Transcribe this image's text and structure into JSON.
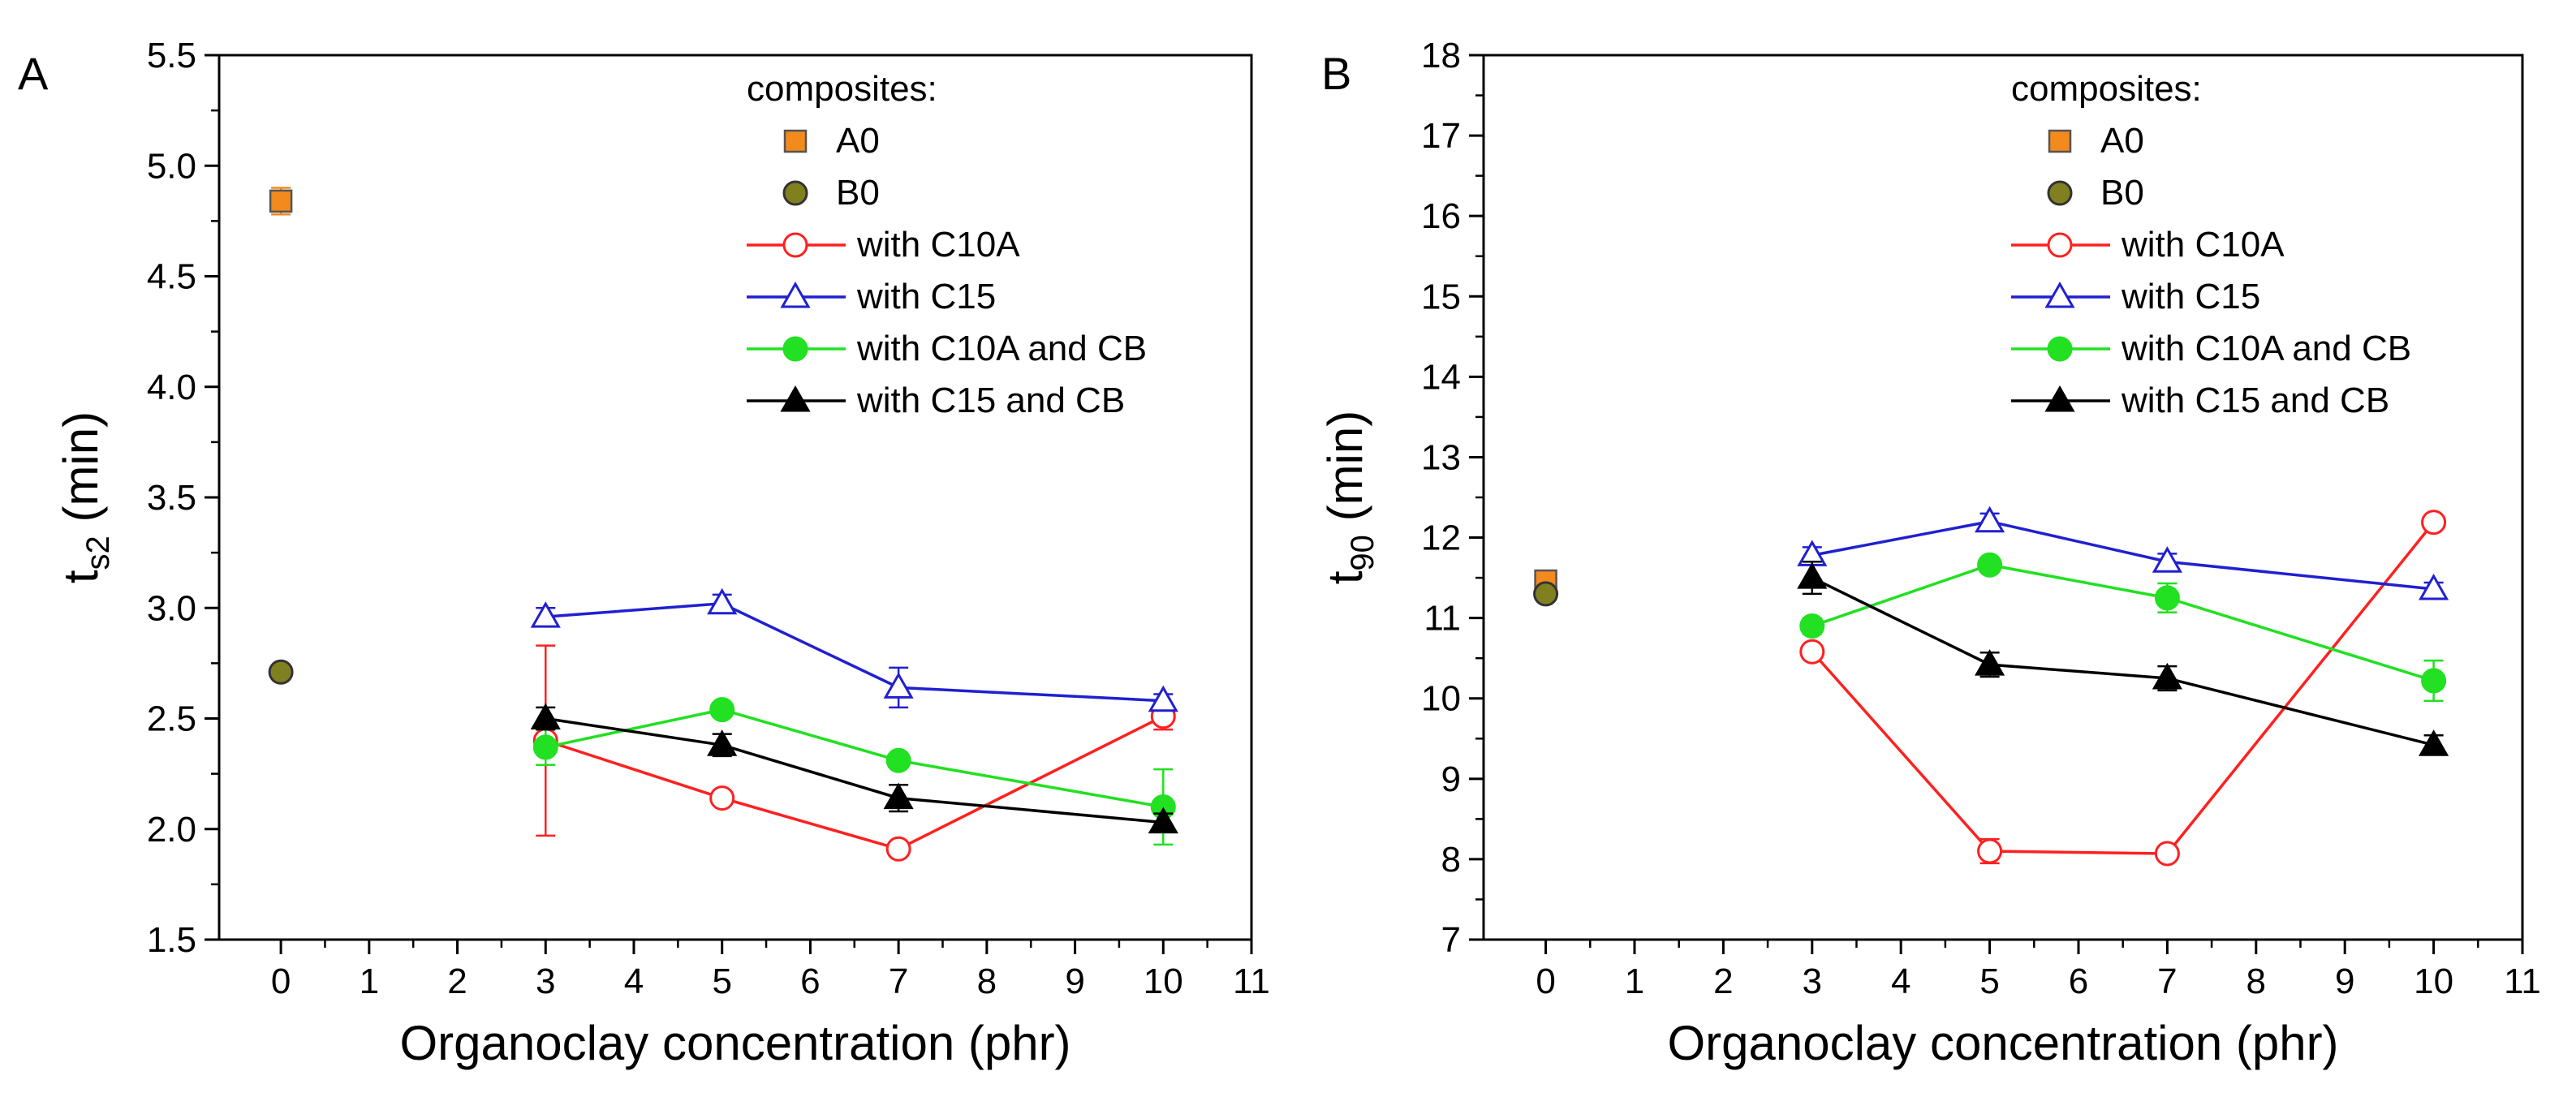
{
  "chart_data": [
    {
      "panel_label": "A",
      "type": "scatter",
      "xlabel": "Organoclay concentration (phr)",
      "ylabel_main": "t",
      "ylabel_sub": "s2",
      "ylabel_unit": " (min)",
      "xlim": [
        -0.7,
        11
      ],
      "ylim": [
        1.5,
        5.5
      ],
      "xticks": [
        0,
        1,
        2,
        3,
        4,
        5,
        6,
        7,
        8,
        9,
        10,
        11
      ],
      "yticks": [
        1.5,
        2.0,
        2.5,
        3.0,
        3.5,
        4.0,
        4.5,
        5.0,
        5.5
      ],
      "ytick_labels": [
        "1.5",
        "2.0",
        "2.5",
        "3.0",
        "3.5",
        "4.0",
        "4.5",
        "5.0",
        "5.5"
      ],
      "legend_title": "composites:",
      "series": [
        {
          "name": "A0",
          "key": "a0",
          "color": "#f28a1e",
          "marker": "square",
          "filled": true,
          "line": false,
          "x": [
            0
          ],
          "y": [
            4.84
          ],
          "err": [
            0.06
          ]
        },
        {
          "name": "B0",
          "key": "b0",
          "color": "#808020",
          "marker": "circle",
          "filled": true,
          "line": false,
          "x": [
            0
          ],
          "y": [
            2.71
          ],
          "err": [
            0.03
          ]
        },
        {
          "name": "with C10A",
          "key": "c10a",
          "color": "#ff2020",
          "marker": "circle",
          "filled": false,
          "line": true,
          "x": [
            3,
            5,
            7,
            10
          ],
          "y": [
            2.4,
            2.14,
            1.91,
            2.51
          ],
          "err": [
            0.43,
            0.03,
            0.03,
            0.06
          ]
        },
        {
          "name": "with C15",
          "key": "c15",
          "color": "#2020d0",
          "marker": "triangle",
          "filled": false,
          "line": true,
          "x": [
            3,
            5,
            7,
            10
          ],
          "y": [
            2.96,
            3.02,
            2.64,
            2.58
          ],
          "err": [
            0.04,
            0.04,
            0.09,
            0.03
          ]
        },
        {
          "name": "with C10A and CB",
          "key": "c10a-cb",
          "color": "#22e022",
          "marker": "circle",
          "filled": true,
          "line": true,
          "x": [
            3,
            5,
            7,
            10
          ],
          "y": [
            2.37,
            2.54,
            2.31,
            2.1
          ],
          "err": [
            0.08,
            0.03,
            0.03,
            0.17
          ]
        },
        {
          "name": "with C15 and CB",
          "key": "c15-cb",
          "color": "#000000",
          "marker": "triangle",
          "filled": true,
          "line": true,
          "x": [
            3,
            5,
            7,
            10
          ],
          "y": [
            2.5,
            2.38,
            2.14,
            2.03
          ],
          "err": [
            0.05,
            0.05,
            0.06,
            0.04
          ]
        }
      ]
    },
    {
      "panel_label": "B",
      "type": "scatter",
      "xlabel": "Organoclay concentration (phr)",
      "ylabel_main": "t",
      "ylabel_sub": "90",
      "ylabel_unit": " (min)",
      "xlim": [
        -0.7,
        11
      ],
      "ylim": [
        7,
        18
      ],
      "xticks": [
        0,
        1,
        2,
        3,
        4,
        5,
        6,
        7,
        8,
        9,
        10,
        11
      ],
      "yticks": [
        7,
        8,
        9,
        10,
        11,
        12,
        13,
        14,
        15,
        16,
        17,
        18
      ],
      "ytick_labels": [
        "7",
        "8",
        "9",
        "10",
        "11",
        "12",
        "13",
        "14",
        "15",
        "16",
        "17",
        "18"
      ],
      "legend_title": "composites:",
      "series": [
        {
          "name": "A0",
          "key": "a0",
          "color": "#f28a1e",
          "marker": "square",
          "filled": true,
          "line": false,
          "x": [
            0
          ],
          "y": [
            11.46
          ],
          "err": [
            0.05
          ]
        },
        {
          "name": "B0",
          "key": "b0",
          "color": "#808020",
          "marker": "circle",
          "filled": true,
          "line": false,
          "x": [
            0
          ],
          "y": [
            11.3
          ],
          "err": [
            0.05
          ]
        },
        {
          "name": "with C10A",
          "key": "c10a",
          "color": "#ff2020",
          "marker": "circle",
          "filled": false,
          "line": true,
          "x": [
            3,
            5,
            7,
            10
          ],
          "y": [
            10.58,
            8.1,
            8.07,
            12.19
          ],
          "err": [
            0.08,
            0.15,
            0.08,
            0.08
          ]
        },
        {
          "name": "with C15",
          "key": "c15",
          "color": "#2020d0",
          "marker": "triangle",
          "filled": false,
          "line": true,
          "x": [
            3,
            5,
            7,
            10
          ],
          "y": [
            11.78,
            12.2,
            11.7,
            11.36
          ],
          "err": [
            0.1,
            0.1,
            0.1,
            0.08
          ]
        },
        {
          "name": "with C10A and CB",
          "key": "c10a-cb",
          "color": "#22e022",
          "marker": "circle",
          "filled": true,
          "line": true,
          "x": [
            3,
            5,
            7,
            10
          ],
          "y": [
            10.9,
            11.66,
            11.25,
            10.22
          ],
          "err": [
            0.1,
            0.05,
            0.18,
            0.25
          ]
        },
        {
          "name": "with C15 and CB",
          "key": "c15-cb",
          "color": "#000000",
          "marker": "triangle",
          "filled": true,
          "line": true,
          "x": [
            3,
            5,
            7,
            10
          ],
          "y": [
            11.5,
            10.42,
            10.25,
            9.42
          ],
          "err": [
            0.2,
            0.15,
            0.15,
            0.12
          ]
        }
      ]
    }
  ]
}
